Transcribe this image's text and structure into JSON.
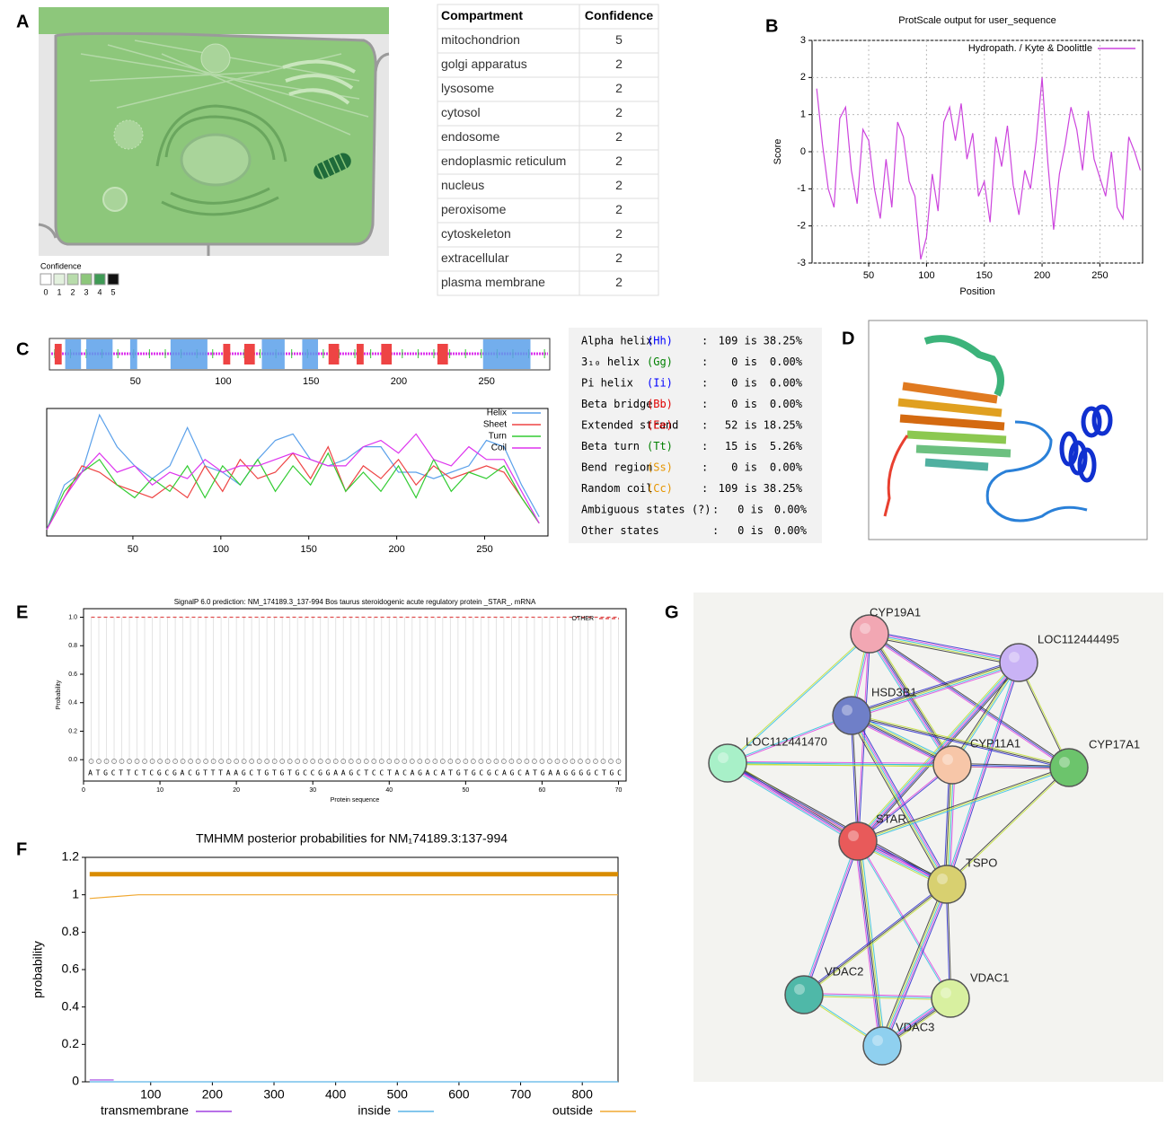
{
  "panel_labels": [
    "A",
    "B",
    "C",
    "D",
    "E",
    "F",
    "G"
  ],
  "confidence_legend": {
    "title": "Confidence",
    "levels": [
      0,
      1,
      2,
      3,
      4,
      5
    ],
    "colors": [
      "#ffffff",
      "#e3f1de",
      "#b8dcab",
      "#8dc77b",
      "#3f9a55",
      "#111111"
    ]
  },
  "localization_table": {
    "header": [
      "Compartment",
      "Confidence"
    ],
    "rows": [
      [
        "mitochondrion",
        5
      ],
      [
        "golgi apparatus",
        2
      ],
      [
        "lysosome",
        2
      ],
      [
        "cytosol",
        2
      ],
      [
        "endosome",
        2
      ],
      [
        "endoplasmic reticulum",
        2
      ],
      [
        "nucleus",
        2
      ],
      [
        "peroxisome",
        2
      ],
      [
        "cytoskeleton",
        2
      ],
      [
        "extracellular",
        2
      ],
      [
        "plasma membrane",
        2
      ]
    ]
  },
  "secondary_structure_table": {
    "rows": [
      {
        "name": "Alpha helix",
        "code": "(Hh)",
        "code_color": "#0000ff",
        "sep": ":",
        "count": "109 is",
        "percent": "38.25%"
      },
      {
        "name": "3₁₀ helix",
        "code": "(Gg)",
        "code_color": "#008000",
        "sep": ":",
        "count": "0 is",
        "percent": "0.00%"
      },
      {
        "name": "Pi helix",
        "code": "(Ii)",
        "code_color": "#0000ff",
        "sep": ":",
        "count": "0 is",
        "percent": "0.00%"
      },
      {
        "name": "Beta bridge",
        "code": "(Bb)",
        "code_color": "#e00000",
        "sep": ":",
        "count": "0 is",
        "percent": "0.00%"
      },
      {
        "name": "Extended strand",
        "code": "(Ee)",
        "code_color": "#e00000",
        "sep": ":",
        "count": "52 is",
        "percent": "18.25%"
      },
      {
        "name": "Beta turn",
        "code": "(Tt)",
        "code_color": "#008000",
        "sep": ":",
        "count": "15 is",
        "percent": "5.26%"
      },
      {
        "name": "Bend region",
        "code": "(Ss)",
        "code_color": "#e69500",
        "sep": ":",
        "count": "0 is",
        "percent": "0.00%"
      },
      {
        "name": "Random coil",
        "code": "(Cc)",
        "code_color": "#e69500",
        "sep": ":",
        "count": "109 is",
        "percent": "38.25%"
      },
      {
        "name": "Ambiguous states (?)",
        "sep": ":",
        "count": "0 is",
        "percent": "0.00%"
      },
      {
        "name": "Other states",
        "sep": ":",
        "count": "0 is",
        "percent": "0.00%"
      }
    ]
  },
  "network": {
    "nodes": [
      {
        "label": "CYP19A1",
        "color": "#f2a7b3"
      },
      {
        "label": "LOC112444495",
        "color": "#c9b3f5"
      },
      {
        "label": "HSD3B1",
        "color": "#6f7fc8"
      },
      {
        "label": "LOC112441470",
        "color": "#a8f0c8"
      },
      {
        "label": "CYP11A1",
        "color": "#f7c6a8"
      },
      {
        "label": "CYP17A1",
        "color": "#6cc46c"
      },
      {
        "label": "STAR",
        "color": "#e85a5a"
      },
      {
        "label": "TSPO",
        "color": "#d8d070"
      },
      {
        "label": "VDAC2",
        "color": "#4fb8a8"
      },
      {
        "label": "VDAC1",
        "color": "#d8f0a0"
      },
      {
        "label": "VDAC3",
        "color": "#8fd0ef"
      }
    ]
  },
  "chart_data": [
    {
      "type": "line",
      "title": "ProtScale output for user_sequence",
      "x_label": "Position",
      "y_label": "Score",
      "grid": true,
      "legend": "upper right",
      "xlim": [
        1,
        287
      ],
      "ylim": [
        -3,
        3
      ],
      "xticks": [
        50,
        100,
        150,
        200,
        250
      ],
      "yticks": [
        -3,
        -2,
        -1,
        0,
        1,
        2,
        3
      ],
      "x": [
        5,
        10,
        15,
        20,
        25,
        30,
        35,
        40,
        45,
        50,
        55,
        60,
        65,
        70,
        75,
        80,
        85,
        90,
        95,
        100,
        105,
        110,
        115,
        120,
        125,
        130,
        135,
        140,
        145,
        150,
        155,
        160,
        165,
        170,
        175,
        180,
        185,
        190,
        195,
        200,
        205,
        210,
        215,
        220,
        225,
        230,
        235,
        240,
        245,
        250,
        255,
        260,
        265,
        270,
        275,
        280,
        285
      ],
      "series": [
        {
          "name": "Hydropath. / Kyte & Doolittle",
          "color": "#cc44dd",
          "values": [
            1.7,
            0.2,
            -1.0,
            -1.5,
            0.9,
            1.2,
            -0.5,
            -1.4,
            0.6,
            0.3,
            -1.0,
            -1.8,
            -0.2,
            -1.5,
            0.8,
            0.4,
            -0.8,
            -1.2,
            -2.9,
            -2.3,
            -0.6,
            -1.6,
            0.8,
            1.2,
            0.3,
            1.3,
            -0.2,
            0.5,
            -1.2,
            -0.8,
            -1.9,
            0.4,
            -0.4,
            0.7,
            -0.9,
            -1.7,
            -0.5,
            -1.0,
            0.3,
            2.0,
            -0.3,
            -2.1,
            -0.6,
            0.2,
            1.2,
            0.6,
            -0.5,
            1.1,
            -0.2,
            -0.7,
            -1.2,
            0.0,
            -1.5,
            -1.8,
            0.4,
            0.0,
            -0.5
          ]
        }
      ]
    },
    {
      "type": "line",
      "legend": "upper right",
      "xlim": [
        1,
        286
      ],
      "ylim": [
        0,
        1
      ],
      "xticks": [
        50,
        100,
        150,
        200,
        250
      ],
      "helix_segments": [
        [
          10,
          19
        ],
        [
          22,
          37
        ],
        [
          47,
          51
        ],
        [
          70,
          91
        ],
        [
          122,
          135
        ],
        [
          145,
          154
        ],
        [
          248,
          275
        ]
      ],
      "sheet_segments": [
        [
          4,
          8
        ],
        [
          100,
          104
        ],
        [
          112,
          118
        ],
        [
          160,
          166
        ],
        [
          176,
          180
        ],
        [
          190,
          196
        ],
        [
          222,
          228
        ]
      ],
      "x": [
        1,
        11,
        21,
        31,
        41,
        51,
        61,
        71,
        81,
        91,
        101,
        111,
        121,
        131,
        141,
        151,
        161,
        171,
        181,
        191,
        201,
        211,
        221,
        231,
        241,
        251,
        261,
        271,
        281
      ],
      "series": [
        {
          "name": "Helix",
          "color": "#5aa0ea",
          "values": [
            0.05,
            0.4,
            0.5,
            0.95,
            0.7,
            0.55,
            0.45,
            0.55,
            0.85,
            0.55,
            0.5,
            0.4,
            0.6,
            0.75,
            0.8,
            0.6,
            0.55,
            0.6,
            0.7,
            0.7,
            0.5,
            0.5,
            0.45,
            0.5,
            0.55,
            0.75,
            0.7,
            0.4,
            0.15
          ]
        },
        {
          "name": "Sheet",
          "color": "#ee4444",
          "values": [
            0.05,
            0.3,
            0.55,
            0.5,
            0.4,
            0.35,
            0.3,
            0.4,
            0.3,
            0.55,
            0.35,
            0.6,
            0.45,
            0.5,
            0.65,
            0.45,
            0.7,
            0.35,
            0.55,
            0.45,
            0.6,
            0.4,
            0.55,
            0.45,
            0.5,
            0.55,
            0.5,
            0.3,
            0.1
          ]
        },
        {
          "name": "Turn",
          "color": "#33cc33",
          "values": [
            0.05,
            0.35,
            0.5,
            0.6,
            0.4,
            0.3,
            0.45,
            0.35,
            0.55,
            0.3,
            0.55,
            0.4,
            0.6,
            0.35,
            0.55,
            0.4,
            0.65,
            0.35,
            0.5,
            0.35,
            0.55,
            0.3,
            0.6,
            0.35,
            0.5,
            0.45,
            0.55,
            0.3,
            0.1
          ]
        },
        {
          "name": "Coil",
          "color": "#dd33ee",
          "values": [
            0.05,
            0.3,
            0.5,
            0.65,
            0.5,
            0.55,
            0.4,
            0.5,
            0.45,
            0.6,
            0.5,
            0.55,
            0.55,
            0.6,
            0.65,
            0.6,
            0.55,
            0.55,
            0.7,
            0.75,
            0.65,
            0.8,
            0.6,
            0.55,
            0.7,
            0.6,
            0.6,
            0.35,
            0.1
          ]
        }
      ]
    },
    {
      "type": "line",
      "title": "SignalP 6.0 prediction: NM_174189.3_137-994 Bos taurus steroidogenic acute regulatory protein _STAR_, mRNA",
      "x_label": "Protein sequence",
      "y_label": "Probability",
      "legend": "upper right",
      "sequence": "ATGCTTCTCGCGACGTTTAAGCTGTGTGCCGGAAGCTCCTACAGACATGTGCGCAGCATGAAGGGGCTGC",
      "xlim": [
        0,
        71
      ],
      "ylim": [
        -0.15,
        1.06
      ],
      "xticks": [
        0,
        10,
        20,
        30,
        40,
        50,
        60,
        70
      ],
      "yticks": [
        {
          "value": 0,
          "label": "0.0"
        },
        0.2,
        0.4,
        0.6,
        0.8,
        {
          "value": 1,
          "label": "1.0"
        }
      ],
      "x": [
        1,
        70
      ],
      "series": [
        {
          "name": "OTHER",
          "color": "#e05050",
          "dash": true,
          "values": [
            1,
            1
          ]
        }
      ]
    },
    {
      "type": "line",
      "title": "TMHMM posterior probabilities for NM₁74189.3:137-994",
      "y_label": "probability",
      "legend": "bottom",
      "xlim": [
        -6,
        858
      ],
      "ylim": [
        0,
        1.2
      ],
      "xticks": [
        100,
        200,
        300,
        400,
        500,
        600,
        700,
        800
      ],
      "yticks": [
        0,
        0.2,
        0.4,
        0.6,
        0.8,
        1,
        1.2
      ],
      "prediction_band": {
        "y": 1.11,
        "color": "#d98c00"
      },
      "x": [
        1,
        40,
        80,
        858
      ],
      "series": [
        {
          "name": "transmembrane",
          "color": "#a040e0",
          "values": [
            0.01,
            0.01,
            null,
            null
          ]
        },
        {
          "name": "inside",
          "color": "#5ab4e6",
          "values": [
            0,
            0,
            0,
            0
          ]
        },
        {
          "name": "outside",
          "color": "#f0a830",
          "values": [
            0.98,
            0.99,
            1,
            1
          ]
        }
      ]
    }
  ]
}
